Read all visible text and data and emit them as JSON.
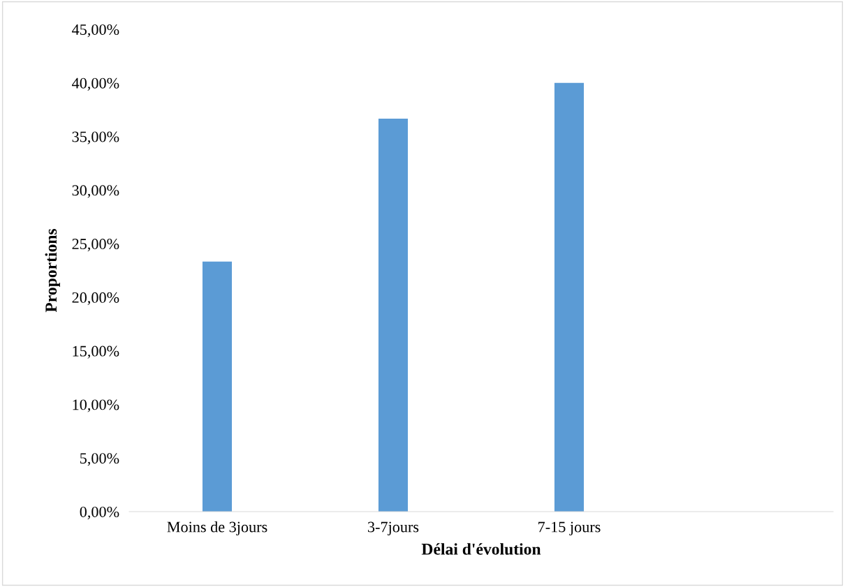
{
  "chart_data": {
    "type": "bar",
    "xlabel": "Délai d'évolution",
    "ylabel": "Proportions",
    "categories": [
      "Moins de 3jours",
      "3-7jours",
      "7-15 jours",
      null
    ],
    "values": [
      23.33,
      36.67,
      40.0,
      null
    ],
    "color": "#5b9bd5",
    "ylim": [
      0,
      45
    ],
    "yticks": [
      {
        "value": 0,
        "label": "0,00%"
      },
      {
        "value": 5,
        "label": "5,00%"
      },
      {
        "value": 10,
        "label": "10,00%"
      },
      {
        "value": 15,
        "label": "15,00%"
      },
      {
        "value": 20,
        "label": "20,00%"
      },
      {
        "value": 25,
        "label": "25,00%"
      },
      {
        "value": 30,
        "label": "30,00%"
      },
      {
        "value": 35,
        "label": "35,00%"
      },
      {
        "value": 40,
        "label": "40,00%"
      },
      {
        "value": 45,
        "label": "45,00%"
      }
    ],
    "grid": false
  }
}
